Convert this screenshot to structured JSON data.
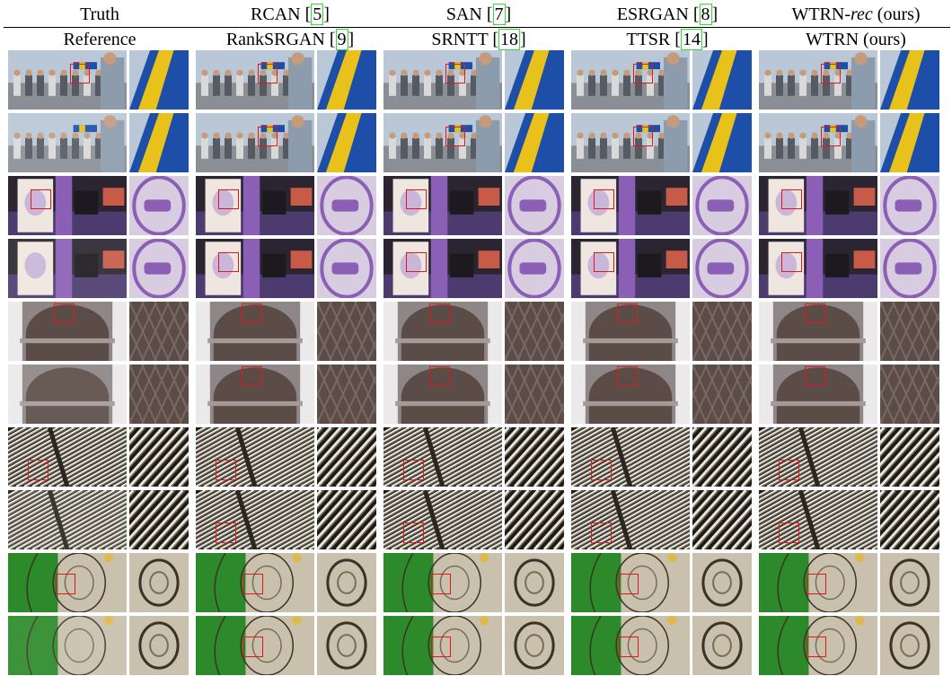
{
  "header": {
    "row1": [
      {
        "text": "Truth",
        "ref": ""
      },
      {
        "text": "RCAN ",
        "ref": "5"
      },
      {
        "text": "SAN ",
        "ref": "7"
      },
      {
        "text": "ESRGAN ",
        "ref": "8"
      },
      {
        "text": "WTRN-",
        "italic": "rec",
        "suffix": " (ours)",
        "ref": ""
      }
    ],
    "row2": [
      {
        "text": "Reference",
        "ref": ""
      },
      {
        "text": "RankSRGAN ",
        "ref": "9"
      },
      {
        "text": "SRNTT ",
        "ref": "18"
      },
      {
        "text": "TTSR ",
        "ref": "14"
      },
      {
        "text": "WTRN (ours)",
        "ref": ""
      }
    ]
  },
  "colors": {
    "ref_box": "#33dd33",
    "crop_box": "#e01818"
  },
  "scenes": [
    {
      "name": "crowd-tent",
      "sky": "#b9c7d6",
      "ground": "#8a8f96",
      "accent1": "#1d4fa8",
      "accent2": "#e8c21b",
      "accent3": "#c94a3a"
    },
    {
      "name": "lectern-seal",
      "sky": "#2a2530",
      "ground": "#4b3b6e",
      "accent1": "#efe6df",
      "accent2": "#8a5fb5",
      "accent3": "#c85b48"
    },
    {
      "name": "arch-facade",
      "sky": "#c7c3c4",
      "ground": "#8e8687",
      "accent1": "#5c4c47",
      "accent2": "#ece9ea",
      "accent3": "#a49b99"
    },
    {
      "name": "striped-roof",
      "sky": "#1e1a14",
      "ground": "#3a352c",
      "accent1": "#e9e6df",
      "accent2": "#6b6457",
      "accent3": "#2a2620"
    },
    {
      "name": "green-stone",
      "sky": "#2d8a2a",
      "ground": "#c9c0ad",
      "accent1": "#3b3326",
      "accent2": "#e0b94a",
      "accent3": "#7b6d55"
    }
  ]
}
